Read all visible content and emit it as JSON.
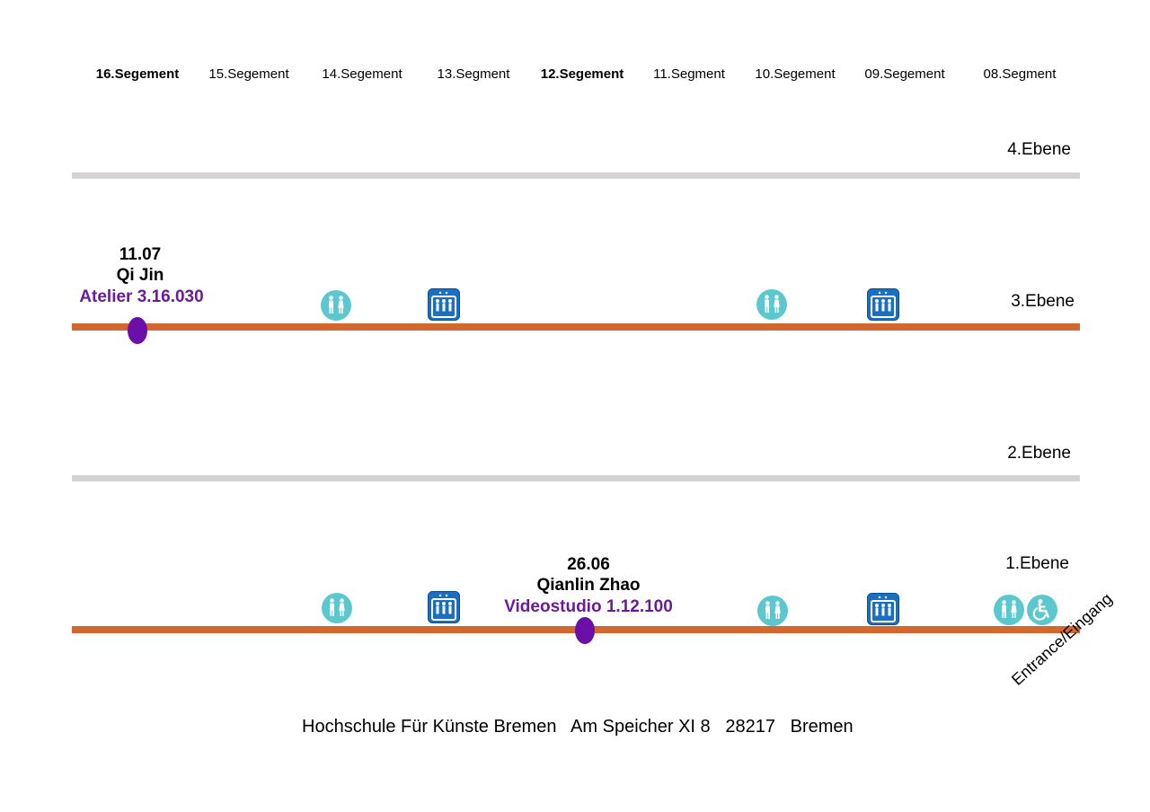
{
  "segments": [
    {
      "label": "16.Segement",
      "bold": true
    },
    {
      "label": "15.Segement",
      "bold": false
    },
    {
      "label": "14.Segement",
      "bold": false
    },
    {
      "label": "13.Segment",
      "bold": false
    },
    {
      "label": "12.Segement",
      "bold": true
    },
    {
      "label": "11.Segment",
      "bold": false
    },
    {
      "label": "10.Segement",
      "bold": false
    },
    {
      "label": "09.Segement",
      "bold": false
    },
    {
      "label": "08.Segment",
      "bold": false
    }
  ],
  "levels": {
    "level4": "4.Ebene",
    "level3": "3.Ebene",
    "level2": "2.Ebene",
    "level1": "1.Ebene"
  },
  "events": {
    "event1": {
      "date": "11.07",
      "person": "Qi Jin",
      "room": "Atelier 3.16.030"
    },
    "event2": {
      "date": "26.06",
      "person": "Qianlin Zhao",
      "room": "Videostudio 1.12.100"
    }
  },
  "icons": {
    "restroom": "restroom-icon",
    "elevator": "elevator-icon",
    "wheelchair": "wheelchair-icon"
  },
  "colors": {
    "active_line": "#d2682d",
    "inactive_line": "#d4d2d3",
    "marker": "#6b0fa8",
    "room_text": "#6a1b9a",
    "restroom": "#5bc8d0",
    "elevator": "#1a6fc0"
  },
  "entrance_label": "Entrance/Eingang",
  "footer": {
    "institution": "Hochschule Für Künste Bremen",
    "street": "Am Speicher XI 8",
    "zip": "28217",
    "city": "Bremen"
  }
}
